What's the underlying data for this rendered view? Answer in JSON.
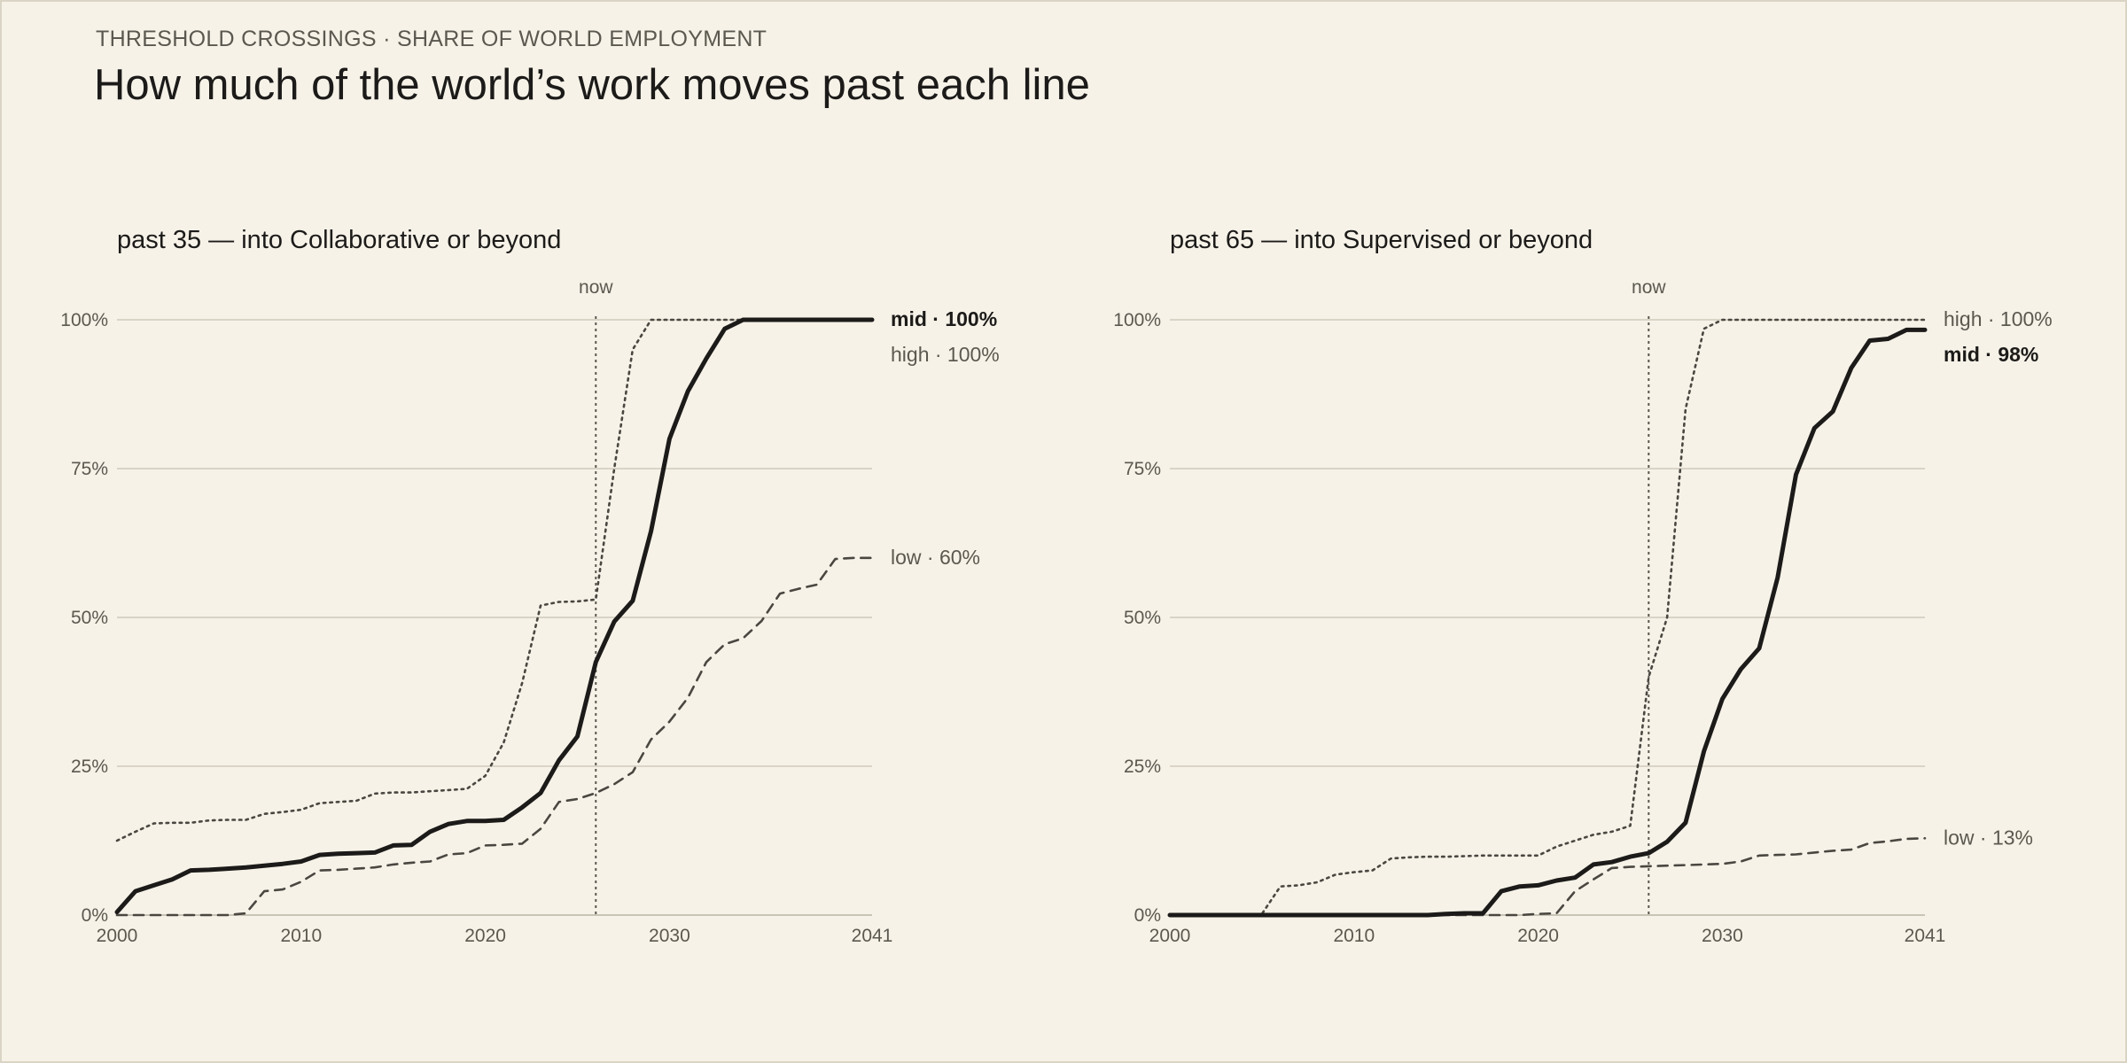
{
  "header": {
    "kicker": "THRESHOLD CROSSINGS · SHARE OF WORLD EMPLOYMENT",
    "title": "How much of the world’s work moves past each line"
  },
  "colors": {
    "background": "#f6f2e8",
    "ink": "#1c1b19",
    "muted": "#5b5850",
    "grid": "#cfcabb"
  },
  "chart_data": [
    {
      "type": "line",
      "title": "past 35 — into Collaborative or beyond",
      "now_label": "now",
      "now_x": 2026,
      "xlim": [
        2000,
        2041
      ],
      "ylim": [
        0,
        100
      ],
      "x_ticks": [
        2000,
        2010,
        2020,
        2030,
        2041
      ],
      "y_ticks": [
        0,
        25,
        50,
        75,
        100
      ],
      "y_tick_labels": [
        "0%",
        "25%",
        "50%",
        "75%",
        "100%"
      ],
      "grid": true,
      "series": [
        {
          "name": "mid",
          "style": "solid",
          "end_label": "mid · 100%",
          "x": [
            2000,
            2001,
            2002,
            2003,
            2004,
            2005,
            2006,
            2007,
            2008,
            2009,
            2010,
            2011,
            2012,
            2013,
            2014,
            2015,
            2016,
            2017,
            2018,
            2019,
            2020,
            2021,
            2022,
            2023,
            2024,
            2025,
            2026,
            2027,
            2028,
            2029,
            2030,
            2031,
            2032,
            2033,
            2034,
            2035,
            2036,
            2037,
            2038,
            2039,
            2040,
            2041
          ],
          "values": [
            0.5,
            4,
            5,
            6,
            7.5,
            7.6,
            7.8,
            8,
            8.3,
            8.6,
            9,
            10.1,
            10.3,
            10.4,
            10.5,
            11.7,
            11.8,
            14,
            15.3,
            15.8,
            15.8,
            16,
            18.1,
            20.5,
            26,
            30,
            42.5,
            49.3,
            52.8,
            64.5,
            80,
            88,
            93.5,
            98.5,
            100,
            100,
            100,
            100,
            100,
            100,
            100,
            100
          ]
        },
        {
          "name": "high",
          "style": "dotted",
          "end_label": "high · 100%",
          "x": [
            2000,
            2001,
            2002,
            2003,
            2004,
            2005,
            2006,
            2007,
            2008,
            2009,
            2010,
            2011,
            2012,
            2013,
            2014,
            2015,
            2016,
            2017,
            2018,
            2019,
            2020,
            2021,
            2022,
            2023,
            2024,
            2025,
            2026,
            2027,
            2028,
            2029,
            2030,
            2031,
            2032,
            2033,
            2034,
            2035,
            2036,
            2037,
            2038,
            2039,
            2040,
            2041
          ],
          "values": [
            12.5,
            14,
            15.4,
            15.5,
            15.5,
            15.9,
            16,
            16,
            17,
            17.3,
            17.7,
            18.8,
            19,
            19.2,
            20.4,
            20.6,
            20.6,
            20.8,
            21,
            21.2,
            23.4,
            29,
            39,
            52,
            52.6,
            52.7,
            53,
            75,
            95,
            100,
            100,
            100,
            100,
            100,
            100,
            100,
            100,
            100,
            100,
            100,
            100,
            100
          ]
        },
        {
          "name": "low",
          "style": "dashed",
          "end_label": "low · 60%",
          "x": [
            2000,
            2001,
            2002,
            2003,
            2004,
            2005,
            2006,
            2007,
            2008,
            2009,
            2010,
            2011,
            2012,
            2013,
            2014,
            2015,
            2016,
            2017,
            2018,
            2019,
            2020,
            2021,
            2022,
            2023,
            2024,
            2025,
            2026,
            2027,
            2028,
            2029,
            2030,
            2031,
            2032,
            2033,
            2034,
            2035,
            2036,
            2037,
            2038,
            2039,
            2040,
            2041
          ],
          "values": [
            0,
            0,
            0,
            0,
            0,
            0,
            0,
            0.3,
            4,
            4.3,
            5.6,
            7.5,
            7.6,
            7.8,
            8,
            8.5,
            8.8,
            9,
            10.2,
            10.4,
            11.7,
            11.8,
            12,
            14.5,
            19,
            19.5,
            20.5,
            22,
            24,
            29.5,
            32.5,
            36.5,
            42.5,
            45.5,
            46.5,
            49.4,
            54,
            54.8,
            55.5,
            59.8,
            60,
            60
          ]
        }
      ],
      "label_order": [
        "mid",
        "high",
        "low"
      ]
    },
    {
      "type": "line",
      "title": "past 65 — into Supervised or beyond",
      "now_label": "now",
      "now_x": 2026,
      "xlim": [
        2000,
        2041
      ],
      "ylim": [
        0,
        100
      ],
      "x_ticks": [
        2000,
        2010,
        2020,
        2030,
        2041
      ],
      "y_ticks": [
        0,
        25,
        50,
        75,
        100
      ],
      "y_tick_labels": [
        "0%",
        "25%",
        "50%",
        "75%",
        "100%"
      ],
      "grid": true,
      "series": [
        {
          "name": "mid",
          "style": "solid",
          "end_label": "mid · 98%",
          "x": [
            2000,
            2001,
            2002,
            2003,
            2004,
            2005,
            2006,
            2007,
            2008,
            2009,
            2010,
            2011,
            2012,
            2013,
            2014,
            2015,
            2016,
            2017,
            2018,
            2019,
            2020,
            2021,
            2022,
            2023,
            2024,
            2025,
            2026,
            2027,
            2028,
            2029,
            2030,
            2031,
            2032,
            2033,
            2034,
            2035,
            2036,
            2037,
            2038,
            2039,
            2040,
            2041
          ],
          "values": [
            0,
            0,
            0,
            0,
            0,
            0,
            0,
            0,
            0,
            0,
            0,
            0,
            0,
            0,
            0,
            0.2,
            0.3,
            0.3,
            4,
            4.8,
            5,
            5.8,
            6.3,
            8.5,
            8.9,
            9.8,
            10.4,
            12.3,
            15.5,
            27.5,
            36.3,
            41.3,
            44.8,
            56.7,
            74,
            81.8,
            84.6,
            91.9,
            96.5,
            96.8,
            98.3,
            98.3
          ]
        },
        {
          "name": "high",
          "style": "dotted",
          "end_label": "high · 100%",
          "x": [
            2000,
            2001,
            2002,
            2003,
            2004,
            2005,
            2006,
            2007,
            2008,
            2009,
            2010,
            2011,
            2012,
            2013,
            2014,
            2015,
            2016,
            2017,
            2018,
            2019,
            2020,
            2021,
            2022,
            2023,
            2024,
            2025,
            2026,
            2027,
            2028,
            2029,
            2030,
            2031,
            2032,
            2033,
            2034,
            2035,
            2036,
            2037,
            2038,
            2039,
            2040,
            2041
          ],
          "values": [
            0,
            0,
            0,
            0,
            0,
            0.2,
            4.8,
            5,
            5.5,
            6.8,
            7.2,
            7.5,
            9.5,
            9.7,
            9.8,
            9.8,
            9.9,
            10,
            10,
            10,
            10,
            11.5,
            12.5,
            13.5,
            14,
            15,
            40,
            50,
            85,
            98.5,
            100,
            100,
            100,
            100,
            100,
            100,
            100,
            100,
            100,
            100,
            100,
            100
          ]
        },
        {
          "name": "low",
          "style": "dashed",
          "end_label": "low · 13%",
          "x": [
            2000,
            2001,
            2002,
            2003,
            2004,
            2005,
            2006,
            2007,
            2008,
            2009,
            2010,
            2011,
            2012,
            2013,
            2014,
            2015,
            2016,
            2017,
            2018,
            2019,
            2020,
            2021,
            2022,
            2023,
            2024,
            2025,
            2026,
            2027,
            2028,
            2029,
            2030,
            2031,
            2032,
            2033,
            2034,
            2035,
            2036,
            2037,
            2038,
            2039,
            2040,
            2041
          ],
          "values": [
            0,
            0,
            0,
            0,
            0,
            0,
            0,
            0,
            0,
            0,
            0,
            0,
            0,
            0,
            0,
            0,
            0,
            0,
            0,
            0,
            0.2,
            0.3,
            4,
            6,
            7.9,
            8.1,
            8.2,
            8.3,
            8.4,
            8.5,
            8.6,
            9,
            10,
            10.1,
            10.2,
            10.5,
            10.8,
            11,
            12.1,
            12.4,
            12.8,
            12.9
          ]
        }
      ],
      "label_order": [
        "high",
        "mid",
        "low"
      ]
    }
  ]
}
